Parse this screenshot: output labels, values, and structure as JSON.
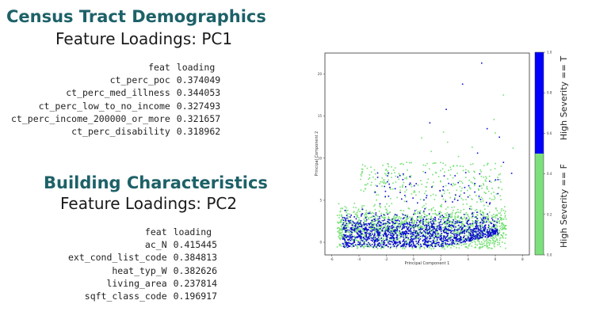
{
  "census": {
    "title": "Census Tract Demographics",
    "subtitle": "Feature Loadings: PC1",
    "headers": {
      "feat": "feat",
      "loading": "loading"
    },
    "rows": [
      {
        "feat": "ct_perc_poc",
        "loading": "0.374049"
      },
      {
        "feat": "ct_perc_med_illness",
        "loading": "0.344053"
      },
      {
        "feat": "ct_perc_low_to_no_income",
        "loading": "0.327493"
      },
      {
        "feat": "ct_perc_income_200000_or_more",
        "loading": "0.321657"
      },
      {
        "feat": "ct_perc_disability",
        "loading": "0.318962"
      }
    ]
  },
  "building": {
    "title": "Building Characteristics",
    "subtitle": "Feature Loadings: PC2",
    "headers": {
      "feat": "feat",
      "loading": "loading"
    },
    "rows": [
      {
        "feat": "ac_N",
        "loading": "0.415445"
      },
      {
        "feat": "ext_cond_list_code",
        "loading": "0.384813"
      },
      {
        "feat": "heat_typ_W",
        "loading": "0.382626"
      },
      {
        "feat": "living_area",
        "loading": "0.237814"
      },
      {
        "feat": "sqft_class_code",
        "loading": "0.196917"
      }
    ]
  },
  "chart_data": {
    "type": "scatter",
    "xlabel": "Principal Component 1",
    "ylabel": "Principal Component 2",
    "xlim": [
      -6.5,
      8.5
    ],
    "ylim": [
      -1.5,
      22.5
    ],
    "xticks": [
      "-6",
      "-4",
      "-2",
      "0",
      "2",
      "4",
      "6",
      "8"
    ],
    "yticks": [
      "0",
      "5",
      "10",
      "15",
      "20"
    ],
    "series": [
      {
        "name": "High Severity == F",
        "color": "#77e077"
      },
      {
        "name": "High Severity == T",
        "color": "#0c0ccf"
      }
    ],
    "colorbar": {
      "labels": [
        "High Severity == T",
        "High Severity == F"
      ],
      "ticks": [
        "0.0",
        "0.2",
        "0.4",
        "0.6",
        "0.8",
        "1.0"
      ],
      "colors": [
        "#0000ff",
        "#7ce07c"
      ]
    },
    "outliers_T": [
      [
        5.0,
        21.3
      ],
      [
        3.6,
        18.8
      ],
      [
        2.4,
        15.8
      ],
      [
        1.2,
        14.2
      ],
      [
        5.4,
        13.5
      ],
      [
        6.3,
        12.5
      ],
      [
        7.2,
        8.2
      ],
      [
        4.7,
        10.6
      ],
      [
        6.6,
        9.5
      ]
    ],
    "outliers_F": [
      [
        6.6,
        17.5
      ],
      [
        5.9,
        14.6
      ],
      [
        2.2,
        13.1
      ],
      [
        0.6,
        12.4
      ],
      [
        4.3,
        11.3
      ],
      [
        6.0,
        13.0
      ],
      [
        1.3,
        10.8
      ],
      [
        2.5,
        11.9
      ],
      [
        3.3,
        10.2
      ],
      [
        -0.5,
        9.5
      ],
      [
        5.4,
        9.2
      ],
      [
        7.3,
        11.2
      ]
    ]
  }
}
